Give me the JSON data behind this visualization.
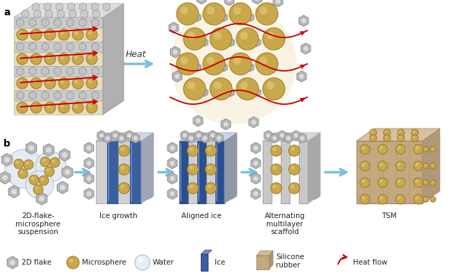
{
  "panel_a_label": "a",
  "panel_b_label": "b",
  "heat_label": "Heat",
  "arrow_color_blue": "#78BFDC",
  "arrow_color_red": "#CC0000",
  "flake_color": "#BBBBBB",
  "flake_edge_color": "#888888",
  "sphere_color_gold": "#C8A84B",
  "sphere_highlight": "#E8D080",
  "sphere_edge_gold": "#A08030",
  "rubber_color": "#C4A882",
  "rubber_edge": "#A08860",
  "ice_color": "#3A5FA0",
  "background": "#FFFFFF",
  "step_labels": [
    "2D-flake-\nmicrosphere\nsuspension",
    "Ice growth",
    "Aligned ice",
    "Alternating\nmultilayer\nscaffold",
    "TSM"
  ],
  "legend_labels": [
    "2D flake",
    "Microsphere",
    "Water",
    "Ice",
    "Silicone\nrubber",
    "Heat flow"
  ],
  "text_color": "#222222",
  "label_fontsize": 7.5,
  "panel_fontsize": 10
}
